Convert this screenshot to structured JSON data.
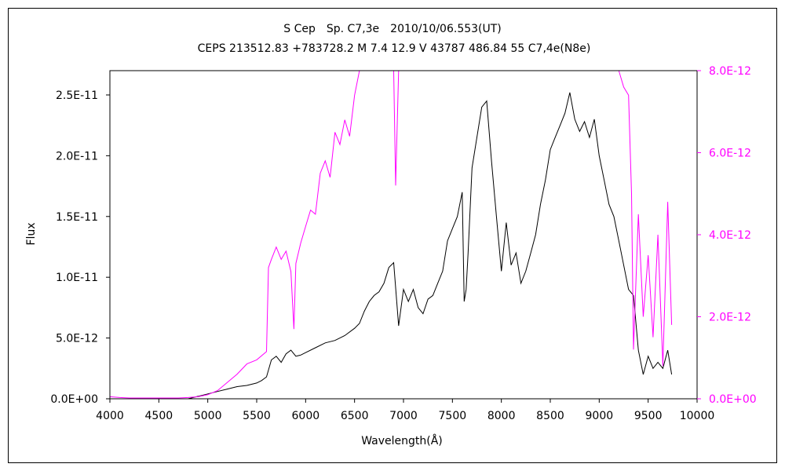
{
  "chart_data": {
    "type": "line",
    "title": "S Cep　Sp. C7,3e　2010/10/06.553(UT)",
    "subtitle": "CEPS 213512.83 +783728.2 M 7.4 12.9 V 43787 486.84 55 C7,4e(N8e)",
    "xlabel": "Wavelength(Å)",
    "ylabel": "Flux",
    "xlim": [
      4000,
      10000
    ],
    "ylim": [
      0,
      2.7e-11
    ],
    "y2lim": [
      0,
      8e-12
    ],
    "x_tick_labels": [
      "4000",
      "4500",
      "5000",
      "5500",
      "6000",
      "6500",
      "7000",
      "7500",
      "8000",
      "8500",
      "9000",
      "9500",
      "10000"
    ],
    "y_tick_labels": [
      "0.0E+00",
      "5.0E-12",
      "1.0E-11",
      "1.5E-11",
      "2.0E-11",
      "2.5E-11"
    ],
    "y2_tick_labels": [
      "0.0E+00",
      "2.0E-12",
      "4.0E-12",
      "6.0E-12",
      "8.0E-12"
    ],
    "grid": false,
    "colors": {
      "left_series": "#000000",
      "right_series": "#ff00ff",
      "right_axis": "#ff00ff"
    },
    "series": [
      {
        "axis": "left",
        "color": "#000000",
        "x": [
          4000,
          4100,
          4200,
          4300,
          4400,
          4500,
          4600,
          4700,
          4800,
          4900,
          5000,
          5100,
          5200,
          5300,
          5400,
          5500,
          5550,
          5600,
          5650,
          5700,
          5750,
          5800,
          5850,
          5900,
          5950,
          6000,
          6100,
          6200,
          6300,
          6400,
          6500,
          6550,
          6600,
          6650,
          6700,
          6750,
          6800,
          6850,
          6900,
          6950,
          7000,
          7050,
          7100,
          7150,
          7200,
          7250,
          7300,
          7350,
          7400,
          7450,
          7500,
          7550,
          7600,
          7620,
          7640,
          7660,
          7700,
          7750,
          7800,
          7850,
          7900,
          7950,
          8000,
          8050,
          8100,
          8150,
          8200,
          8250,
          8300,
          8350,
          8400,
          8450,
          8500,
          8550,
          8600,
          8650,
          8700,
          8750,
          8800,
          8850,
          8900,
          8950,
          9000,
          9050,
          9100,
          9150,
          9200,
          9250,
          9300,
          9350,
          9400,
          9450,
          9500,
          9550,
          9600,
          9650,
          9700,
          9740
        ],
        "y": [
          0,
          0,
          0,
          0,
          0,
          0,
          0,
          0,
          0,
          2e-13,
          4e-13,
          6e-13,
          8e-13,
          1e-12,
          1.1e-12,
          1.3e-12,
          1.5e-12,
          1.8e-12,
          3.2e-12,
          3.5e-12,
          3e-12,
          3.7e-12,
          4e-12,
          3.5e-12,
          3.6e-12,
          3.8e-12,
          4.2e-12,
          4.6e-12,
          4.8e-12,
          5.2e-12,
          5.8e-12,
          6.2e-12,
          7.2e-12,
          8e-12,
          8.5e-12,
          8.8e-12,
          9.5e-12,
          1.08e-11,
          1.12e-11,
          6e-12,
          9e-12,
          8e-12,
          9e-12,
          7.5e-12,
          7e-12,
          8.2e-12,
          8.5e-12,
          9.5e-12,
          1.05e-11,
          1.3e-11,
          1.4e-11,
          1.5e-11,
          1.7e-11,
          8e-12,
          9e-12,
          1.2e-11,
          1.9e-11,
          2.15e-11,
          2.4e-11,
          2.45e-11,
          1.95e-11,
          1.5e-11,
          1.05e-11,
          1.45e-11,
          1.1e-11,
          1.2e-11,
          9.5e-12,
          1.05e-11,
          1.2e-11,
          1.35e-11,
          1.6e-11,
          1.8e-11,
          2.05e-11,
          2.15e-11,
          2.25e-11,
          2.35e-11,
          2.52e-11,
          2.3e-11,
          2.2e-11,
          2.28e-11,
          2.15e-11,
          2.3e-11,
          2e-11,
          1.8e-11,
          1.6e-11,
          1.5e-11,
          1.3e-11,
          1.1e-11,
          9e-12,
          8.5e-12,
          4e-12,
          2e-12,
          3.5e-12,
          2.5e-12,
          3e-12,
          2.5e-12,
          4e-12,
          2e-12
        ]
      },
      {
        "axis": "right",
        "color": "#ff00ff",
        "x": [
          4000,
          4100,
          4200,
          4300,
          4400,
          4500,
          4600,
          4700,
          4800,
          4900,
          5000,
          5100,
          5200,
          5300,
          5400,
          5500,
          5600,
          5620,
          5650,
          5700,
          5750,
          5800,
          5850,
          5880,
          5900,
          5950,
          6000,
          6050,
          6100,
          6150,
          6200,
          6250,
          6300,
          6350,
          6400,
          6450,
          6500,
          6550,
          6600,
          6650,
          6700,
          6750,
          6800,
          6850,
          6900,
          6920,
          6950,
          7000,
          7050,
          7100,
          7150,
          7200,
          7250,
          7300,
          7350,
          7400,
          7450,
          7500,
          7550,
          7600,
          7620,
          7640,
          9200,
          9250,
          9300,
          9330,
          9350,
          9400,
          9450,
          9500,
          9550,
          9600,
          9650,
          9700,
          9740
        ],
        "y": [
          5e-14,
          3e-14,
          2e-14,
          2e-14,
          2e-14,
          2e-14,
          2e-14,
          2e-14,
          3e-14,
          5e-14,
          1e-13,
          2e-13,
          4e-13,
          6e-13,
          8.5e-13,
          9.5e-13,
          1.15e-12,
          3.2e-12,
          3.4e-12,
          3.7e-12,
          3.4e-12,
          3.6e-12,
          3.1e-12,
          1.7e-12,
          3.3e-12,
          3.8e-12,
          4.2e-12,
          4.6e-12,
          4.5e-12,
          5.5e-12,
          5.8e-12,
          5.4e-12,
          6.5e-12,
          6.2e-12,
          6.8e-12,
          6.4e-12,
          7.4e-12,
          8e-12,
          8e-12,
          8e-12,
          8e-12,
          8e-12,
          8e-12,
          8e-12,
          8e-12,
          5.2e-12,
          8e-12,
          8e-12,
          8e-12,
          8e-12,
          8e-12,
          8e-12,
          8e-12,
          8e-12,
          8e-12,
          8e-12,
          8e-12,
          8e-12,
          8e-12,
          8e-12,
          8e-12,
          8e-12,
          8e-12,
          7.6e-12,
          7.4e-12,
          5e-12,
          1.2e-12,
          4.5e-12,
          2e-12,
          3.5e-12,
          1.5e-12,
          4e-12,
          8e-13,
          4.8e-12,
          1.8e-12
        ]
      }
    ]
  }
}
